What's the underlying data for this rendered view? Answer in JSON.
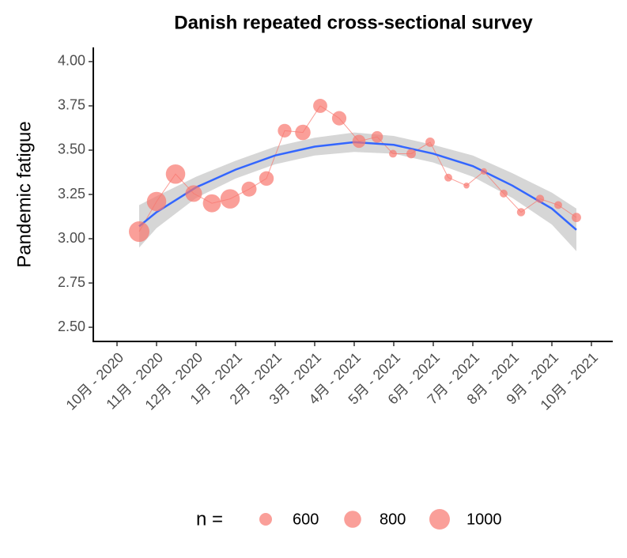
{
  "chart_data": {
    "type": "scatter",
    "title": "Danish repeated cross-sectional survey",
    "y_label": "Pandemic fatigue",
    "xlim": [
      -0.6,
      12.54
    ],
    "ylim": [
      2.42,
      4.08
    ],
    "xticks": [
      {
        "value": 0,
        "label": "10月 - 2020"
      },
      {
        "value": 1,
        "label": "11月 - 2020"
      },
      {
        "value": 2,
        "label": "12月 - 2020"
      },
      {
        "value": 3,
        "label": "1月 - 2021"
      },
      {
        "value": 4,
        "label": "2月 - 2021"
      },
      {
        "value": 5,
        "label": "3月 - 2021"
      },
      {
        "value": 6,
        "label": "4月 - 2021"
      },
      {
        "value": 7,
        "label": "5月 - 2021"
      },
      {
        "value": 8,
        "label": "6月 - 2021"
      },
      {
        "value": 9,
        "label": "7月 - 2021"
      },
      {
        "value": 10,
        "label": "8月 - 2021"
      },
      {
        "value": 11,
        "label": "9月 - 2021"
      },
      {
        "value": 12,
        "label": "10月 - 2021"
      }
    ],
    "yticks": [
      {
        "value": 2.5,
        "label": "2.50"
      },
      {
        "value": 2.75,
        "label": "2.75"
      },
      {
        "value": 3,
        "label": "3.00"
      },
      {
        "value": 3.25,
        "label": "3.25"
      },
      {
        "value": 3.5,
        "label": "3.50"
      },
      {
        "value": 3.75,
        "label": "3.75"
      },
      {
        "value": 4,
        "label": "4.00"
      }
    ],
    "series": [
      {
        "color": "#F8766D",
        "x": [
          0.56,
          1.0,
          1.48,
          1.94,
          2.4,
          2.86,
          3.34,
          3.78,
          4.24,
          4.7,
          5.14,
          5.62,
          6.12,
          6.58,
          6.98,
          7.44,
          7.92,
          8.38,
          8.84,
          9.28,
          9.78,
          10.22,
          10.7,
          11.16,
          11.62
        ],
        "values": [
          3.04,
          3.21,
          3.365,
          3.255,
          3.2,
          3.225,
          3.28,
          3.34,
          3.61,
          3.6,
          3.75,
          3.68,
          3.55,
          3.575,
          3.48,
          3.48,
          3.545,
          3.345,
          3.3,
          3.38,
          3.255,
          3.15,
          3.225,
          3.19,
          3.12
        ],
        "sizes": [
          1000,
          930,
          930,
          780,
          850,
          930,
          700,
          680,
          640,
          720,
          660,
          670,
          620,
          560,
          450,
          490,
          490,
          450,
          410,
          420,
          450,
          460,
          460,
          450,
          490
        ]
      },
      {
        "color": "#3366FF",
        "x": [
          0.56,
          1,
          2,
          3,
          4,
          5,
          6,
          7,
          8,
          9,
          10,
          11,
          11.62
        ],
        "values": [
          3.07,
          3.15,
          3.29,
          3.39,
          3.47,
          3.52,
          3.545,
          3.53,
          3.48,
          3.41,
          3.3,
          3.17,
          3.05
        ],
        "lower": [
          2.95,
          3.06,
          3.23,
          3.34,
          3.42,
          3.47,
          3.49,
          3.48,
          3.43,
          3.35,
          3.23,
          3.08,
          2.93
        ],
        "upper": [
          3.19,
          3.24,
          3.35,
          3.44,
          3.52,
          3.57,
          3.6,
          3.58,
          3.53,
          3.47,
          3.37,
          3.26,
          3.17
        ]
      }
    ],
    "size_legend": {
      "title": "n =",
      "values": [
        600,
        800,
        1000
      ]
    }
  }
}
